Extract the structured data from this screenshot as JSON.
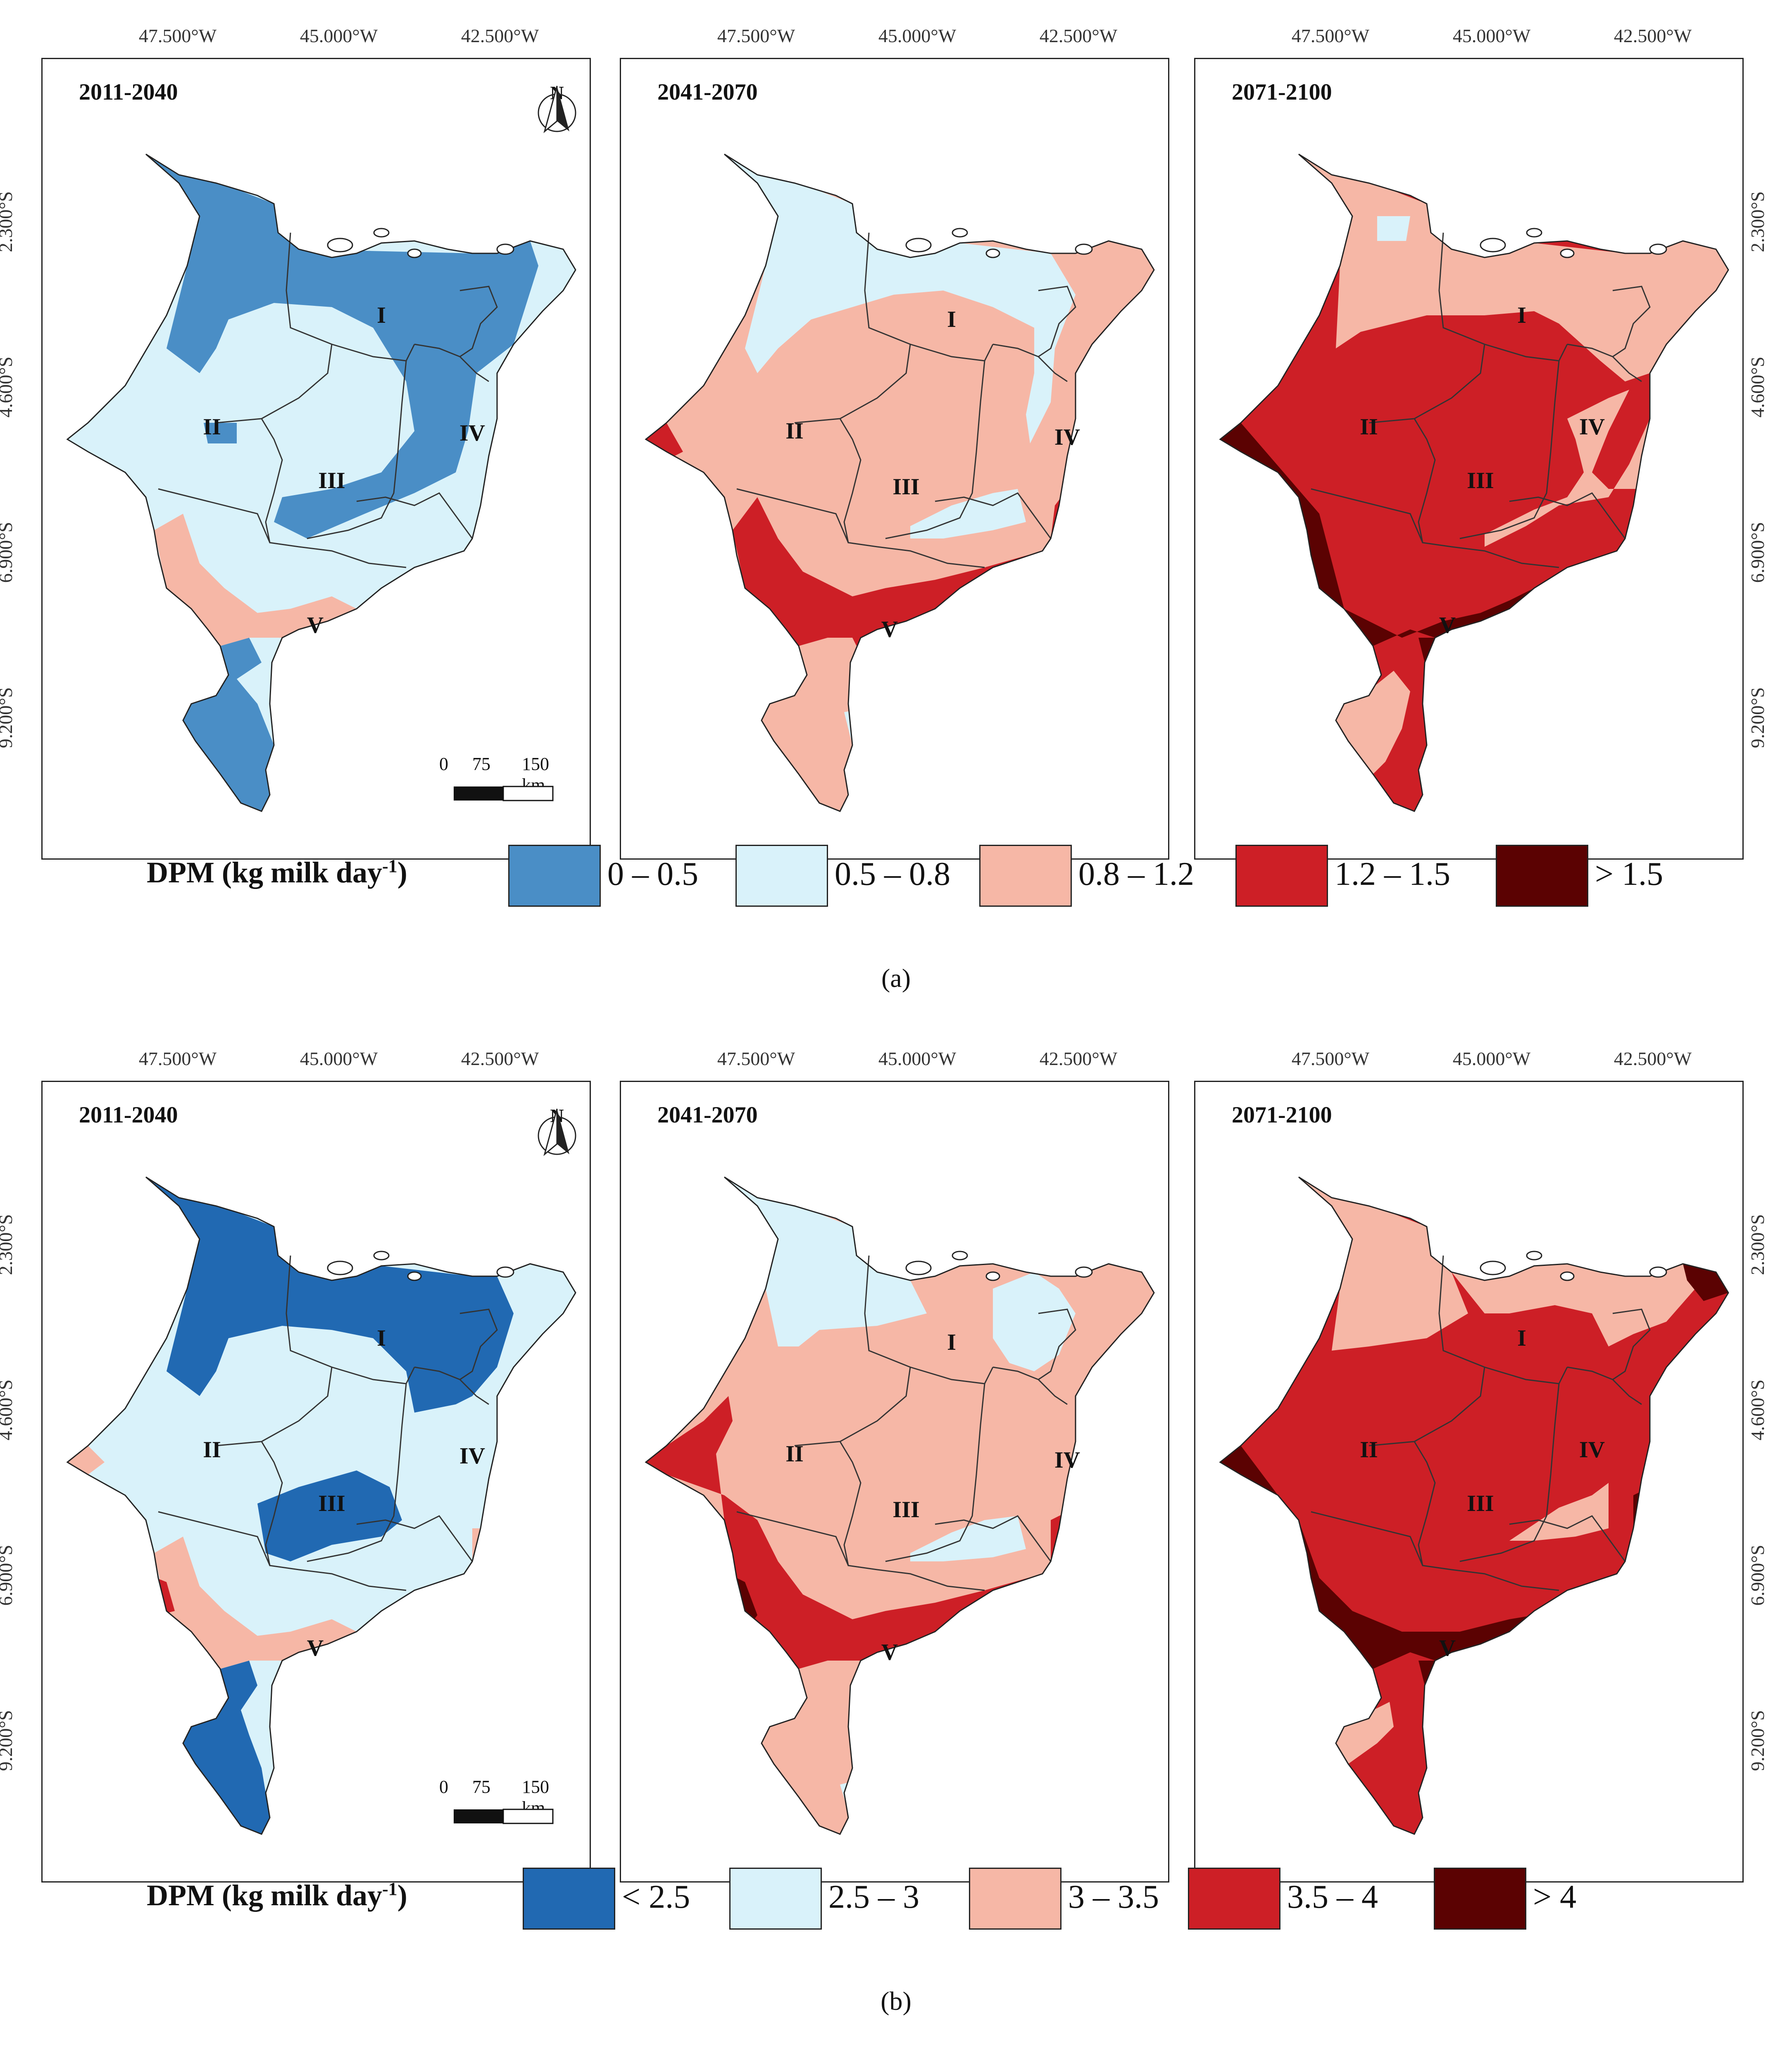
{
  "figures": [
    {
      "id": "a",
      "caption": "(a)",
      "legend_title": "DPM (kg milk day",
      "legend_superscript": "-1",
      "legend_title_close": ")",
      "classes": [
        {
          "label": "0 – 0.5",
          "color": "#4a8ec6"
        },
        {
          "label": "0.5 – 0.8",
          "color": "#d9f2fa"
        },
        {
          "label": "0.8 – 1.2",
          "color": "#f6b7a6"
        },
        {
          "label": "1.2 – 1.5",
          "color": "#cd1f26"
        },
        {
          "label": "> 1.5",
          "color": "#5b0202"
        }
      ],
      "panels": [
        {
          "period": "2011-2040",
          "show_north": true,
          "show_scale": true
        },
        {
          "period": "2041-2070",
          "show_north": false,
          "show_scale": false
        },
        {
          "period": "2071-2100",
          "show_north": false,
          "show_scale": false
        }
      ]
    },
    {
      "id": "b",
      "caption": "(b)",
      "legend_title": "DPM (kg milk day",
      "legend_superscript": "-1",
      "legend_title_close": ")",
      "classes": [
        {
          "label": "< 2.5",
          "color": "#2169b2"
        },
        {
          "label": "2.5 – 3",
          "color": "#d9f2fa"
        },
        {
          "label": "3 – 3.5",
          "color": "#f6b7a6"
        },
        {
          "label": "3.5 – 4",
          "color": "#cd1f26"
        },
        {
          "label": "> 4",
          "color": "#5b0202"
        }
      ],
      "panels": [
        {
          "period": "2011-2040",
          "show_north": true,
          "show_scale": true
        },
        {
          "period": "2041-2070",
          "show_north": false,
          "show_scale": false
        },
        {
          "period": "2071-2100",
          "show_north": false,
          "show_scale": false
        }
      ]
    }
  ],
  "lon_ticks": [
    "47.500°W",
    "45.000°W",
    "42.500°W"
  ],
  "lat_ticks": [
    "2.300°S",
    "4.600°S",
    "6.900°S",
    "9.200°S"
  ],
  "regions": [
    "I",
    "II",
    "III",
    "IV",
    "V"
  ],
  "north_label": "N",
  "scale_bar": {
    "ticks": [
      "0",
      "75",
      "150 km"
    ]
  }
}
